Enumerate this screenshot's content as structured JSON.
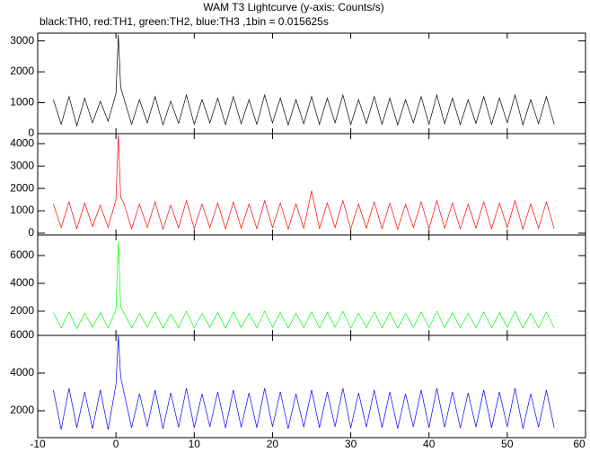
{
  "chart_data": [
    {
      "type": "line",
      "title": "WAM T3 Lightcurve (y-axis: Counts/s)",
      "subtitle": "black:TH0, red:TH1, green:TH2, blue:TH3 ,1bin = 0.015625s",
      "color": "#000000",
      "x": [
        -8,
        -7,
        -6,
        -5,
        -4,
        -3,
        -2,
        -1,
        0,
        0.3,
        0.6,
        1,
        2,
        3,
        4,
        5,
        6,
        7,
        8,
        9,
        10,
        11,
        12,
        13,
        14,
        15,
        16,
        17,
        18,
        19,
        20,
        21,
        22,
        23,
        24,
        25,
        26,
        27,
        28,
        29,
        30,
        31,
        32,
        33,
        34,
        35,
        36,
        37,
        38,
        39,
        40,
        41,
        42,
        43,
        44,
        45,
        46,
        47,
        48,
        49,
        50,
        51,
        52,
        53,
        54,
        55,
        56
      ],
      "values": [
        1100,
        300,
        1200,
        250,
        1150,
        350,
        1050,
        400,
        1300,
        3200,
        1500,
        1150,
        300,
        1100,
        350,
        1200,
        280,
        1050,
        330,
        1250,
        300,
        1100,
        350,
        1150,
        290,
        1200,
        320,
        1100,
        300,
        1250,
        350,
        1150,
        280,
        1100,
        320,
        1200,
        300,
        1150,
        350,
        1250,
        290,
        1100,
        330,
        1200,
        300,
        1150,
        280,
        1100,
        350,
        1200,
        300,
        1250,
        320,
        1150,
        290,
        1100,
        330,
        1200,
        300,
        1150,
        350,
        1250,
        280,
        1100,
        320,
        1200,
        300
      ],
      "ylim": [
        0,
        3250
      ],
      "yticks": [
        0,
        1000,
        2000,
        3000
      ]
    },
    {
      "type": "line",
      "color": "#ff0000",
      "x": [
        -8,
        -7,
        -6,
        -5,
        -4,
        -3,
        -2,
        -1,
        0,
        0.3,
        0.6,
        1,
        2,
        3,
        4,
        5,
        6,
        7,
        8,
        9,
        10,
        11,
        12,
        13,
        14,
        15,
        16,
        17,
        18,
        19,
        20,
        21,
        22,
        23,
        24,
        25,
        26,
        27,
        28,
        29,
        30,
        31,
        32,
        33,
        34,
        35,
        36,
        37,
        38,
        39,
        40,
        41,
        42,
        43,
        44,
        45,
        46,
        47,
        48,
        49,
        50,
        51,
        52,
        53,
        54,
        55,
        56
      ],
      "values": [
        1300,
        250,
        1400,
        200,
        1350,
        300,
        1250,
        250,
        1500,
        4400,
        1600,
        1350,
        200,
        1300,
        250,
        1400,
        180,
        1250,
        230,
        1450,
        200,
        1300,
        250,
        1350,
        190,
        1400,
        220,
        1300,
        200,
        1450,
        250,
        1350,
        180,
        1300,
        220,
        1900,
        200,
        1350,
        250,
        1450,
        190,
        1300,
        230,
        1400,
        200,
        1350,
        180,
        1300,
        250,
        1400,
        200,
        1450,
        220,
        1350,
        190,
        1300,
        230,
        1400,
        200,
        1350,
        250,
        1450,
        180,
        1300,
        220,
        1400,
        200
      ],
      "ylim": [
        -80,
        4450
      ],
      "yticks": [
        0,
        1000,
        2000,
        3000,
        4000
      ]
    },
    {
      "type": "line",
      "color": "#00ff00",
      "x": [
        -8,
        -7,
        -6,
        -5,
        -4,
        -3,
        -2,
        -1,
        0,
        0.3,
        0.6,
        1,
        2,
        3,
        4,
        5,
        6,
        7,
        8,
        9,
        10,
        11,
        12,
        13,
        14,
        15,
        16,
        17,
        18,
        19,
        20,
        21,
        22,
        23,
        24,
        25,
        26,
        27,
        28,
        29,
        30,
        31,
        32,
        33,
        34,
        35,
        36,
        37,
        38,
        39,
        40,
        41,
        42,
        43,
        44,
        45,
        46,
        47,
        48,
        49,
        50,
        51,
        52,
        53,
        54,
        55,
        56
      ],
      "values": [
        1900,
        800,
        1950,
        750,
        1850,
        850,
        1900,
        800,
        2100,
        7000,
        2300,
        1900,
        800,
        1850,
        850,
        1950,
        780,
        1800,
        820,
        2000,
        800,
        1850,
        850,
        1900,
        790,
        1950,
        820,
        1850,
        800,
        2000,
        850,
        1900,
        780,
        1850,
        820,
        1950,
        800,
        1900,
        850,
        2000,
        790,
        1850,
        830,
        1950,
        800,
        1900,
        780,
        1850,
        850,
        1950,
        800,
        2000,
        820,
        1900,
        790,
        1850,
        830,
        1950,
        800,
        1900,
        850,
        2000,
        780,
        1850,
        820,
        1950,
        800
      ],
      "ylim": [
        260,
        7480
      ],
      "yticks": [
        2000,
        4000,
        6000
      ]
    },
    {
      "type": "line",
      "color": "#0000ff",
      "x": [
        -8,
        -7,
        -6,
        -5,
        -4,
        -3,
        -2,
        -1,
        0,
        0.3,
        0.6,
        1,
        2,
        3,
        4,
        5,
        6,
        7,
        8,
        9,
        10,
        11,
        12,
        13,
        14,
        15,
        16,
        17,
        18,
        19,
        20,
        21,
        22,
        23,
        24,
        25,
        26,
        27,
        28,
        29,
        30,
        31,
        32,
        33,
        34,
        35,
        36,
        37,
        38,
        39,
        40,
        41,
        42,
        43,
        44,
        45,
        46,
        47,
        48,
        49,
        50,
        51,
        52,
        53,
        54,
        55,
        56
      ],
      "values": [
        3100,
        1000,
        3200,
        1100,
        3000,
        1050,
        3100,
        1000,
        3400,
        6000,
        3800,
        3000,
        1100,
        2900,
        1150,
        3100,
        1050,
        2950,
        1120,
        3200,
        1100,
        2900,
        1150,
        3000,
        1080,
        3100,
        1120,
        2950,
        1100,
        3200,
        1150,
        3000,
        1050,
        2900,
        1120,
        3100,
        1100,
        3000,
        1150,
        3200,
        1080,
        2950,
        1130,
        3100,
        1100,
        3000,
        1050,
        2900,
        1150,
        3100,
        1100,
        3200,
        1120,
        3000,
        1080,
        2950,
        1130,
        3100,
        1100,
        3000,
        1150,
        3200,
        1050,
        2900,
        1120,
        3100,
        1100
      ],
      "ylim": [
        570,
        6000
      ],
      "yticks": [
        2000,
        4000,
        6000
      ],
      "xlim": [
        -10,
        60
      ],
      "xticks": [
        -10,
        0,
        10,
        20,
        30,
        40,
        50,
        60
      ]
    }
  ]
}
